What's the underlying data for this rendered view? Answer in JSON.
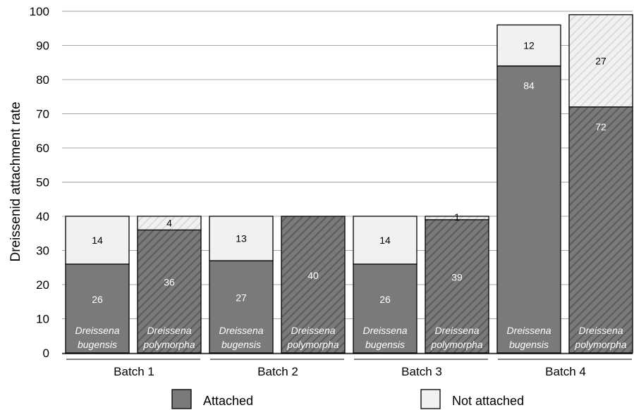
{
  "chart_data": {
    "type": "bar",
    "stacked": true,
    "ylabel": "Dreissenid attachment rate",
    "ylim": [
      0,
      100
    ],
    "yticks": [
      0,
      10,
      20,
      30,
      40,
      50,
      60,
      70,
      80,
      90,
      100
    ],
    "grid": true,
    "legend_position": "bottom",
    "groups": [
      "Batch 1",
      "Batch 2",
      "Batch 3",
      "Batch 4"
    ],
    "species": [
      {
        "line1": "Dreissena",
        "line2": "bugensis",
        "pattern": "solid"
      },
      {
        "line1": "Dreissena",
        "line2": "polymorpha",
        "pattern": "hatched"
      }
    ],
    "series": [
      {
        "name": "Attached",
        "color": "#7a7a7a",
        "values": [
          [
            26,
            36
          ],
          [
            27,
            40
          ],
          [
            26,
            39
          ],
          [
            84,
            72
          ]
        ]
      },
      {
        "name": "Not attached",
        "color": "#f1f1f1",
        "values": [
          [
            14,
            4
          ],
          [
            13,
            0
          ],
          [
            14,
            1
          ],
          [
            12,
            27
          ]
        ]
      }
    ]
  }
}
